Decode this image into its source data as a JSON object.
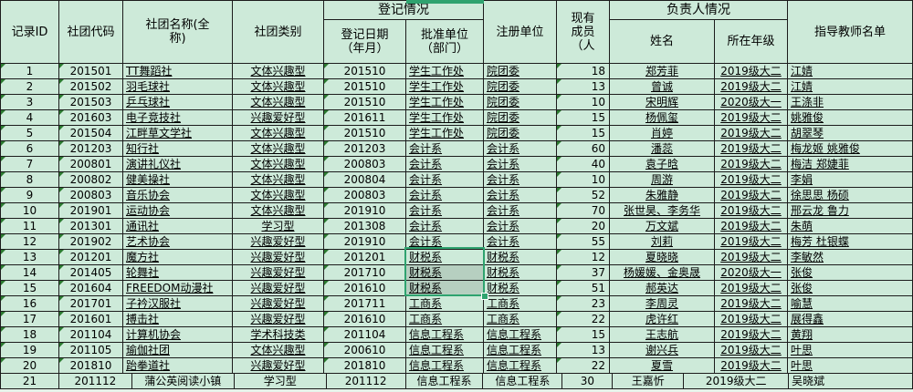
{
  "table": {
    "headers": {
      "record_id": "记录ID",
      "club_code": "社团代码",
      "club_name": "社团名称(全\n称)",
      "club_category": "社团类别",
      "registration_group": "登记情况",
      "reg_date": "登记日期\n（年月）",
      "approve_unit": "批准单位\n（部门）",
      "register_unit": "注册单位",
      "members": "现有\n成员\n（人",
      "leader_group": "负责人情况",
      "leader_name": "姓名",
      "leader_grade": "所在年级",
      "teachers": "指导教师名单"
    },
    "rows": [
      [
        "1",
        "201501",
        "TT舞蹈社",
        "文体兴趣型",
        "201510",
        "学生工作处",
        "院团委",
        "18",
        "郑芳菲",
        "2019级大二",
        "江婧"
      ],
      [
        "2",
        "201502",
        "羽毛球社",
        "文体兴趣型",
        "201510",
        "学生工作处",
        "院团委",
        "13",
        "曾诚",
        "2019级大二",
        "江婧"
      ],
      [
        "3",
        "201503",
        "乒乓球社",
        "文体兴趣型",
        "201510",
        "学生工作处",
        "院团委",
        "10",
        "宋明辉",
        "2020级大一",
        "王涤非"
      ],
      [
        "4",
        "201603",
        "电子竞技社",
        "兴趣爱好型",
        "201611",
        "学生工作处",
        "院团委",
        "15",
        "杨佩玺",
        "2019级大二",
        "姚雅俊"
      ],
      [
        "5",
        "201504",
        "江畔草文学社",
        "文体兴趣型",
        "201510",
        "学生工作处",
        "院团委",
        "15",
        "肖婷",
        "2019级大二",
        "胡翠琴"
      ],
      [
        "6",
        "201203",
        "知行社",
        "文体兴趣型",
        "201203",
        "会计系",
        "会计系",
        "60",
        "潘蕊",
        "2019级大二",
        "梅龙姬 姚雅俊"
      ],
      [
        "7",
        "200801",
        "演讲礼仪社",
        "文体兴趣型",
        "200803",
        "会计系",
        "会计系",
        "40",
        "袁子晗",
        "2019级大二",
        "梅洁 郑婕菲"
      ],
      [
        "8",
        "200802",
        "健美操社",
        "文体兴趣型",
        "200804",
        "会计系",
        "会计系",
        "10",
        "周游",
        "2019级大二",
        "李娟"
      ],
      [
        "9",
        "200803",
        "音乐协会",
        "文体兴趣型",
        "200803",
        "会计系",
        "会计系",
        "52",
        "朱雅静",
        "2019级大二",
        "徐思思 杨硕"
      ],
      [
        "10",
        "201901",
        "运动协会",
        "文体兴趣型",
        "201910",
        "会计系",
        "会计系",
        "70",
        "张世昊、李务华",
        "2019级大二",
        "邢云龙 鲁力"
      ],
      [
        "11",
        "201301",
        "通讯社",
        "学习型",
        "201308",
        "会计系",
        "会计系",
        "20",
        "万文斌",
        "2019级大二",
        "朱萌"
      ],
      [
        "12",
        "201902",
        "艺术协会",
        "兴趣爱好型",
        "201910",
        "会计系",
        "会计系",
        "55",
        "刘莉",
        "2019级大二",
        "梅芳 杜银蝶"
      ],
      [
        "13",
        "201201",
        "魔方社",
        "兴趣爱好型",
        "201201",
        "财税系",
        "财税系",
        "12",
        "夏晓晓",
        "2019级大二",
        "李敏然"
      ],
      [
        "14",
        "201405",
        "轮舞社",
        "兴趣爱好型",
        "201710",
        "财税系",
        "财税系",
        "37",
        "杨媛媛、金奥晟",
        "2020级大一",
        "张俊"
      ],
      [
        "15",
        "201604",
        "FREEDOM动漫社",
        "兴趣爱好型",
        "201610",
        "财税系",
        "财税系",
        "51",
        "郝英达",
        "2019级大二",
        "张俊"
      ],
      [
        "16",
        "201701",
        "子衿汉服社",
        "兴趣爱好型",
        "201711",
        "工商系",
        "工商系",
        "23",
        "李周灵",
        "2019级大二",
        "喻慧"
      ],
      [
        "17",
        "201601",
        "搏击社",
        "兴趣爱好型",
        "201610",
        "工商系",
        "工商系",
        "22",
        "虎许红",
        "2019级大二",
        "展得鑫"
      ],
      [
        "18",
        "201104",
        "计算机协会",
        "学术科技类",
        "201104",
        "信息工程系",
        "信息工程系",
        "15",
        "王志航",
        "2019级大二",
        "黄翔"
      ],
      [
        "19",
        "201105",
        "瑜伽社团",
        "文体兴趣型",
        "200610",
        "信息工程系",
        "信息工程系",
        "13",
        "谢兴兵",
        "2019级大二",
        "叶思"
      ],
      [
        "20",
        "201810",
        "跆拳道社",
        "兴趣爱好型",
        "201810",
        "信息工程系",
        "信息工程系",
        "22",
        "夏雪",
        "2019级大二",
        "叶思"
      ],
      [
        "21",
        "201112",
        "蒲公英阅读小镇",
        "学习型",
        "201112",
        "信息工程系",
        "信息工程系",
        "30",
        "王嘉忻",
        "2019级大二",
        "吴晓斌"
      ]
    ]
  },
  "selection": {
    "column_label": "批准单位",
    "selected_row_ids": [
      "13",
      "14",
      "15"
    ],
    "active_cell_value": "财税系"
  },
  "colors": {
    "cell_bg": "#cdead9",
    "selected_cell_bg": "#b6cfc0",
    "selection_border": "#2fa36f",
    "indicator_triangle": "#2b7a30",
    "gridline": "#1c1c1c",
    "below_sheet_bg": "#e6f3ea"
  }
}
